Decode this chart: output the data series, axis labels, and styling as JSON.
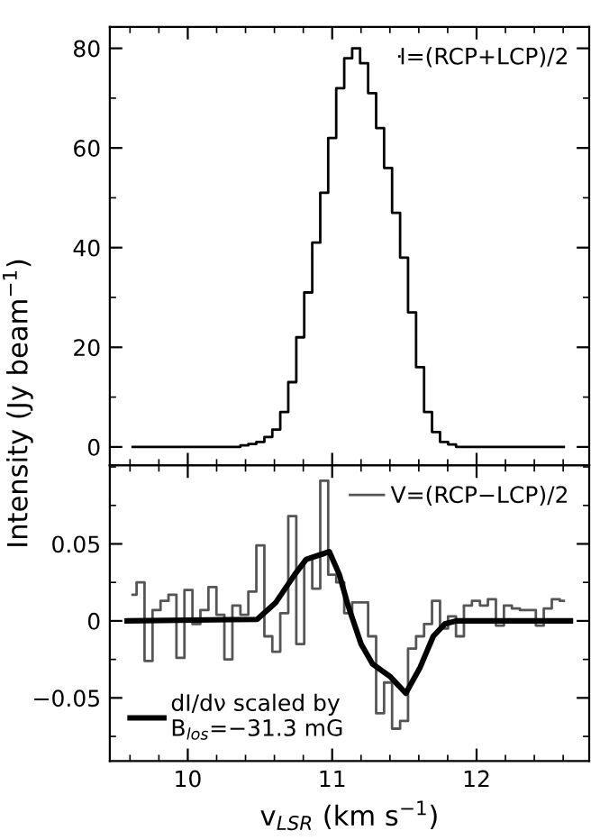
{
  "chart_data": [
    {
      "type": "step",
      "ylabel": "Intensity (Jy beam$^{−1}$)",
      "tick_labels": "y",
      "legend": "top right",
      "x": [
        9.618,
        9.673,
        9.728,
        9.784,
        9.839,
        9.894,
        9.949,
        10.005,
        10.06,
        10.115,
        10.171,
        10.226,
        10.281,
        10.337,
        10.392,
        10.447,
        10.503,
        10.558,
        10.613,
        10.668,
        10.724,
        10.779,
        10.834,
        10.89,
        10.945,
        11.0,
        11.056,
        11.111,
        11.166,
        11.221,
        11.277,
        11.332,
        11.387,
        11.443,
        11.498,
        11.553,
        11.609,
        11.664,
        11.719,
        11.775,
        11.83,
        11.885,
        11.94,
        11.996,
        12.051,
        12.106,
        12.162,
        12.217,
        12.272,
        12.328,
        12.383,
        12.438,
        12.493,
        12.549,
        12.604
      ],
      "series": [
        {
          "name": "I=(RCP+LCP)/2",
          "color": "#000000",
          "values": [
            0,
            0,
            0,
            0,
            0,
            0,
            0,
            0,
            0,
            0,
            0,
            0,
            0,
            0,
            0.3,
            0.6,
            1,
            2,
            3.5,
            7,
            13,
            22,
            31,
            41,
            51,
            62,
            72,
            78,
            80,
            77,
            71,
            64,
            56,
            47,
            38,
            27,
            16,
            7,
            3,
            1,
            0.5,
            0,
            0,
            0,
            0,
            0,
            0,
            0,
            0,
            0,
            0,
            0,
            0,
            0,
            0
          ]
        }
      ],
      "xlim": [
        9.46,
        12.78
      ],
      "xticks": [
        {
          "value": 10,
          "label": null
        },
        {
          "value": 11,
          "label": null
        },
        {
          "value": 12,
          "label": null
        }
      ],
      "ylim": [
        -3.7,
        84.3
      ],
      "yticks": [
        0,
        20,
        40,
        60,
        80
      ]
    },
    {
      "type": "step",
      "xlabel": "v$_{LSR}$ (km s$^{−1}$)",
      "legend": "top right",
      "x": [
        9.618,
        9.673,
        9.728,
        9.784,
        9.839,
        9.894,
        9.949,
        10.005,
        10.06,
        10.115,
        10.171,
        10.226,
        10.281,
        10.337,
        10.392,
        10.447,
        10.503,
        10.558,
        10.613,
        10.668,
        10.724,
        10.779,
        10.834,
        10.89,
        10.945,
        11.0,
        11.056,
        11.111,
        11.166,
        11.221,
        11.277,
        11.332,
        11.387,
        11.443,
        11.498,
        11.553,
        11.609,
        11.664,
        11.719,
        11.775,
        11.83,
        11.885,
        11.94,
        11.996,
        12.051,
        12.106,
        12.162,
        12.217,
        12.272,
        12.328,
        12.383,
        12.438,
        12.493,
        12.549,
        12.604
      ],
      "series": [
        {
          "name": "V=(RCP−LCP)/2",
          "color": "#555555",
          "values": [
            0.017,
            0.025,
            -0.026,
            0.007,
            0.013,
            0.017,
            -0.024,
            0.02,
            -0.002,
            0.007,
            0.022,
            0.004,
            -0.025,
            0.01,
            0.004,
            0.019,
            0.049,
            -0.01,
            -0.02,
            0.005,
            0.068,
            -0.015,
            0.04,
            0.021,
            0.091,
            0.03,
            0.025,
            0.005,
            0.012,
            0.012,
            -0.01,
            -0.06,
            -0.04,
            -0.07,
            -0.065,
            -0.018,
            -0.01,
            -0.002,
            0.013,
            -0.005,
            0.003,
            -0.01,
            0.01,
            0.013,
            0.01,
            0.014,
            -0.003,
            0.01,
            0.008,
            0.007,
            0.007,
            -0.003,
            0.008,
            0.014,
            0.013
          ]
        },
        {
          "name": "dI/dν scaled by\nB$_{los}$=−31.3 mG",
          "type": "line",
          "color": "#000000",
          "x": [
            9.58,
            10.48,
            10.61,
            10.74,
            10.82,
            10.95,
            10.98,
            11.05,
            11.11,
            11.2,
            11.28,
            11.4,
            11.51,
            11.61,
            11.7,
            11.78,
            11.86,
            12.65
          ],
          "values": [
            0,
            0.001,
            0.012,
            0.03,
            0.04,
            0.044,
            0.045,
            0.03,
            0.01,
            -0.015,
            -0.028,
            -0.036,
            -0.047,
            -0.03,
            -0.01,
            -0.002,
            0,
            0
          ]
        }
      ],
      "xlim": [
        9.46,
        12.78
      ],
      "xticks": [
        10,
        11,
        12
      ],
      "ylim": [
        -0.091,
        0.101
      ],
      "yticks": [
        {
          "value": -0.05,
          "label": "−0.05"
        },
        0,
        0.05
      ]
    }
  ]
}
